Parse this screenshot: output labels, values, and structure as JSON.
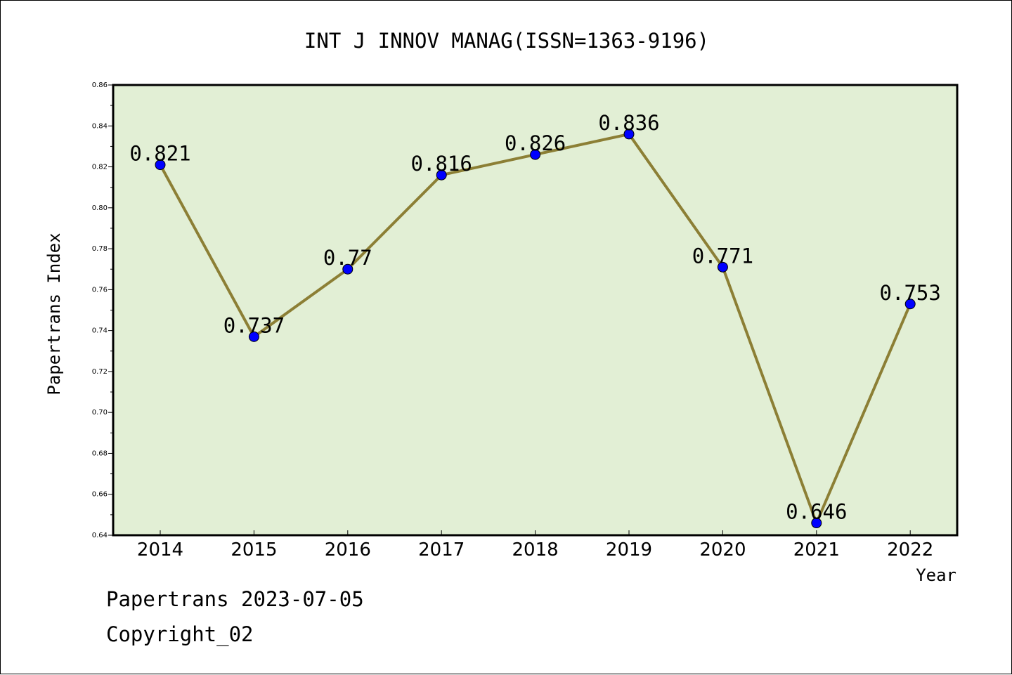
{
  "chart_data": {
    "type": "line",
    "title": "INT J INNOV MANAG(ISSN=1363-9196)",
    "xlabel": "Year",
    "ylabel": "Papertrans Index",
    "categories": [
      "2014",
      "2015",
      "2016",
      "2017",
      "2018",
      "2019",
      "2020",
      "2021",
      "2022"
    ],
    "series": [
      {
        "values": [
          0.821,
          0.737,
          0.77,
          0.816,
          0.826,
          0.836,
          0.771,
          0.646,
          0.753
        ],
        "data_labels": [
          "0.821",
          "0.737",
          "0.77",
          "0.816",
          "0.826",
          "0.836",
          "0.771",
          "0.646",
          "0.753"
        ]
      }
    ],
    "ylim": [
      0.64,
      0.86
    ],
    "yticks": [
      "0.64",
      "0.66",
      "0.68",
      "0.70",
      "0.72",
      "0.74",
      "0.76",
      "0.78",
      "0.80",
      "0.82",
      "0.84",
      "0.86"
    ],
    "grid": false,
    "legend": "none",
    "colors": {
      "plot_background": "#e2efd5",
      "line": "#8c7f35",
      "marker": "#0000ff"
    }
  },
  "footer": {
    "source": "Papertrans 2023-07-05",
    "copyright": "Copyright_02"
  }
}
